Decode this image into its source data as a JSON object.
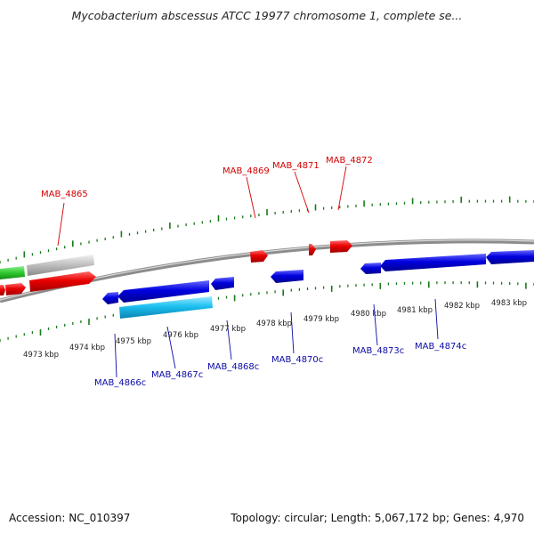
{
  "title": "Mycobacterium abscessus ATCC 19977 chromosome 1, complete se...",
  "accession_label": "Accession: NC_010397",
  "info_label": "Topology: circular; Length: 5,067,172 bp; Genes: 4,970",
  "colors": {
    "forward": "#e80000",
    "reverse": "#0000e0",
    "highlight": "#1cc0f0",
    "grey": "#b8b8b8",
    "green": "#2ec82e",
    "tick": "#1a7a1a",
    "backbone": "#8c8c8c"
  },
  "kbp_labels": [
    "4973 kbp",
    "4974 kbp",
    "4975 kbp",
    "4976 kbp",
    "4977 kbp",
    "4978 kbp",
    "4979 kbp",
    "4980 kbp",
    "4981 kbp",
    "4982 kbp",
    "4983 kbp"
  ],
  "forward_gene_labels": [
    "MAB_4865",
    "MAB_4869",
    "MAB_4871",
    "MAB_4872"
  ],
  "reverse_gene_labels": [
    "MAB_4866c",
    "MAB_4867c",
    "MAB_4868c",
    "MAB_4870c",
    "MAB_4873c",
    "MAB_4874c"
  ]
}
